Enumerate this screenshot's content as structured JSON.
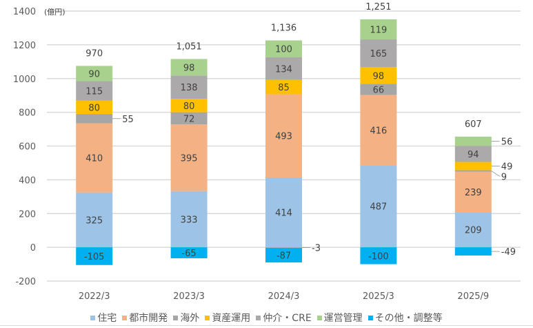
{
  "chart_data": {
    "type": "bar",
    "stacked": true,
    "title": "",
    "unit_label": "(億円)",
    "xlabel": "",
    "ylabel": "",
    "ylim": [
      -200,
      1400
    ],
    "yticks": [
      1400,
      1200,
      1000,
      800,
      600,
      400,
      200,
      0,
      -200
    ],
    "grid": true,
    "legend_position": "bottom",
    "categories": [
      "2022/3",
      "2023/3",
      "2024/3",
      "2025/3",
      "2025/9"
    ],
    "totals": [
      "970",
      "1,051",
      "1,136",
      "1,251",
      "607"
    ],
    "series": [
      {
        "name": "住宅",
        "color": "#9DC3E6",
        "values": [
          325,
          333,
          414,
          487,
          209
        ]
      },
      {
        "name": "都市開発",
        "color": "#F4B183",
        "values": [
          410,
          395,
          493,
          416,
          239
        ]
      },
      {
        "name": "海外",
        "color": "#A6A6A6",
        "values": [
          55,
          72,
          -3,
          66,
          9
        ]
      },
      {
        "name": "資産運用",
        "color": "#FFC000",
        "values": [
          80,
          80,
          85,
          98,
          49
        ]
      },
      {
        "name": "仲介・CRE",
        "color": "#ABA9A9",
        "values": [
          115,
          138,
          134,
          165,
          94
        ]
      },
      {
        "name": "運営管理",
        "color": "#A9D18E",
        "values": [
          90,
          98,
          100,
          119,
          56
        ]
      },
      {
        "name": "その他・調整等",
        "color": "#00B0F0",
        "values": [
          -105,
          -65,
          -87,
          -100,
          -49
        ]
      }
    ]
  }
}
